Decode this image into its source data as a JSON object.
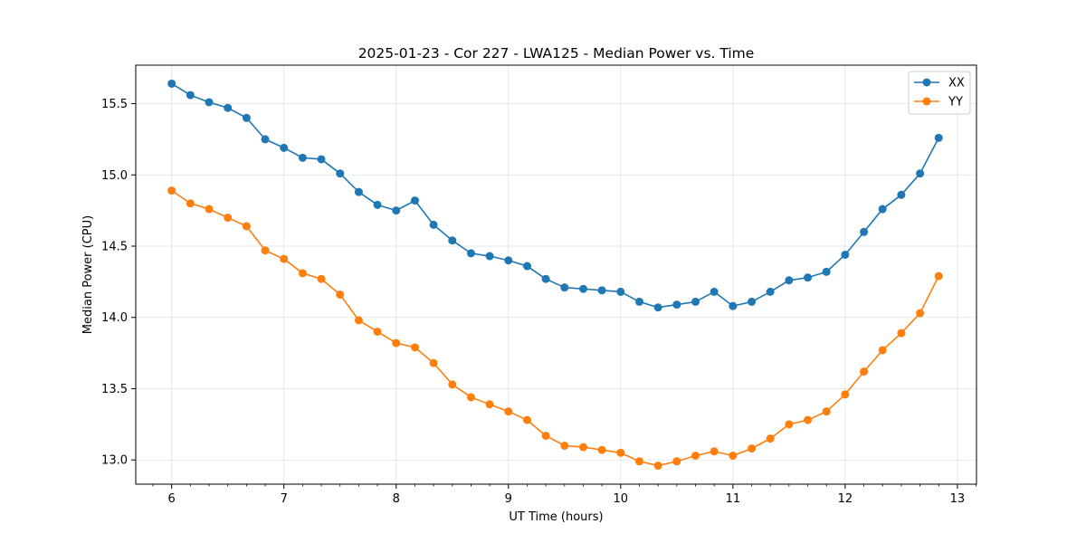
{
  "chart_data": {
    "type": "line",
    "title": "2025-01-23 - Cor 227 - LWA125 - Median Power vs. Time",
    "xlabel": "UT Time (hours)",
    "ylabel": "Median Power (CPU)",
    "xlim": [
      5.68,
      13.17
    ],
    "ylim": [
      12.83,
      15.77
    ],
    "xticks": [
      6,
      7,
      8,
      9,
      10,
      11,
      12,
      13
    ],
    "yticks": [
      13.0,
      13.5,
      14.0,
      14.5,
      15.0,
      15.5
    ],
    "ytick_labels": [
      "13.0",
      "13.5",
      "14.0",
      "14.5",
      "15.0",
      "15.5"
    ],
    "grid": true,
    "legend_position": "top-right",
    "x": [
      6.0,
      6.167,
      6.333,
      6.5,
      6.667,
      6.833,
      7.0,
      7.167,
      7.333,
      7.5,
      7.667,
      7.833,
      8.0,
      8.167,
      8.333,
      8.5,
      8.667,
      8.833,
      9.0,
      9.167,
      9.333,
      9.5,
      9.667,
      9.833,
      10.0,
      10.167,
      10.333,
      10.5,
      10.667,
      10.833,
      11.0,
      11.167,
      11.333,
      11.5,
      11.667,
      11.833,
      12.0,
      12.167,
      12.333,
      12.5,
      12.667,
      12.833
    ],
    "series": [
      {
        "name": "XX",
        "color": "#1f77b4",
        "values": [
          15.64,
          15.56,
          15.51,
          15.47,
          15.4,
          15.25,
          15.19,
          15.12,
          15.11,
          15.01,
          14.88,
          14.79,
          14.75,
          14.82,
          14.65,
          14.54,
          14.45,
          14.43,
          14.4,
          14.36,
          14.27,
          14.21,
          14.2,
          14.19,
          14.18,
          14.11,
          14.07,
          14.09,
          14.11,
          14.18,
          14.08,
          14.11,
          14.18,
          14.26,
          14.28,
          14.32,
          14.44,
          14.6,
          14.76,
          14.86,
          15.01,
          15.26
        ]
      },
      {
        "name": "YY",
        "color": "#ff7f0e",
        "values": [
          14.89,
          14.8,
          14.76,
          14.7,
          14.64,
          14.47,
          14.41,
          14.31,
          14.27,
          14.16,
          13.98,
          13.9,
          13.82,
          13.79,
          13.68,
          13.53,
          13.44,
          13.39,
          13.34,
          13.28,
          13.17,
          13.1,
          13.09,
          13.07,
          13.05,
          12.99,
          12.96,
          12.99,
          13.03,
          13.06,
          13.03,
          13.08,
          13.15,
          13.25,
          13.28,
          13.34,
          13.46,
          13.62,
          13.77,
          13.89,
          14.03,
          14.29
        ]
      }
    ]
  }
}
